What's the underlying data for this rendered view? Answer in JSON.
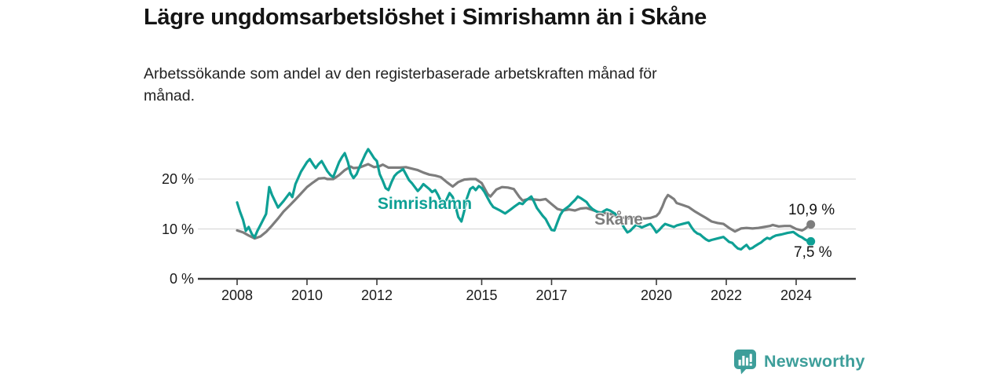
{
  "chart_data": {
    "type": "line",
    "title": "Lägre ungdomsarbetslöshet i Simrishamn än i Skåne",
    "subtitle": "Arbetssökande som andel av den registerbaserade arbetskraften månad för månad.",
    "unit": "%",
    "grid": "horizontal",
    "legend_position": "inline-labels-on-lines",
    "x_axis": {
      "range": [
        2006.9,
        2025.7
      ],
      "ticks": [
        2008,
        2010,
        2012,
        2015,
        2017,
        2020,
        2022,
        2024
      ]
    },
    "y_axis": {
      "range": [
        0,
        27
      ],
      "ticks": [
        {
          "value": 0,
          "label": "0 %"
        },
        {
          "value": 10,
          "label": "10 %"
        },
        {
          "value": 20,
          "label": "20 %"
        }
      ]
    },
    "series": [
      {
        "name": "Skåne",
        "color": "#7d7d7d",
        "end_label": "10,9 %",
        "end_value": 10.9,
        "points": [
          [
            2008.0,
            9.7
          ],
          [
            2008.17,
            9.3
          ],
          [
            2008.33,
            8.7
          ],
          [
            2008.5,
            8.1
          ],
          [
            2008.67,
            8.5
          ],
          [
            2008.83,
            9.4
          ],
          [
            2009.0,
            10.7
          ],
          [
            2009.17,
            12.1
          ],
          [
            2009.33,
            13.5
          ],
          [
            2009.5,
            14.7
          ],
          [
            2009.67,
            15.9
          ],
          [
            2009.83,
            17.1
          ],
          [
            2010.0,
            18.4
          ],
          [
            2010.17,
            19.3
          ],
          [
            2010.33,
            20.1
          ],
          [
            2010.5,
            20.2
          ],
          [
            2010.58,
            20.0
          ],
          [
            2010.75,
            20.0
          ],
          [
            2010.92,
            20.8
          ],
          [
            2011.08,
            21.8
          ],
          [
            2011.25,
            22.5
          ],
          [
            2011.33,
            22.2
          ],
          [
            2011.5,
            22.3
          ],
          [
            2011.75,
            23.0
          ],
          [
            2011.92,
            22.4
          ],
          [
            2012.08,
            22.6
          ],
          [
            2012.17,
            22.9
          ],
          [
            2012.33,
            22.3
          ],
          [
            2012.5,
            22.3
          ],
          [
            2012.67,
            22.3
          ],
          [
            2012.83,
            22.4
          ],
          [
            2013.0,
            22.1
          ],
          [
            2013.17,
            21.8
          ],
          [
            2013.33,
            21.3
          ],
          [
            2013.5,
            20.9
          ],
          [
            2013.67,
            20.7
          ],
          [
            2013.83,
            20.4
          ],
          [
            2014.0,
            19.4
          ],
          [
            2014.17,
            18.5
          ],
          [
            2014.33,
            19.4
          ],
          [
            2014.5,
            19.9
          ],
          [
            2014.67,
            20.0
          ],
          [
            2014.83,
            20.0
          ],
          [
            2015.0,
            19.2
          ],
          [
            2015.17,
            17.0
          ],
          [
            2015.25,
            16.5
          ],
          [
            2015.42,
            17.9
          ],
          [
            2015.58,
            18.4
          ],
          [
            2015.75,
            18.3
          ],
          [
            2015.92,
            18.0
          ],
          [
            2016.08,
            16.4
          ],
          [
            2016.17,
            15.7
          ],
          [
            2016.33,
            16.0
          ],
          [
            2016.5,
            15.9
          ],
          [
            2016.67,
            15.8
          ],
          [
            2016.83,
            16.0
          ],
          [
            2017.0,
            15.0
          ],
          [
            2017.17,
            14.0
          ],
          [
            2017.33,
            13.7
          ],
          [
            2017.5,
            13.9
          ],
          [
            2017.67,
            13.7
          ],
          [
            2017.83,
            14.1
          ],
          [
            2018.0,
            14.2
          ],
          [
            2018.17,
            13.8
          ],
          [
            2018.33,
            13.4
          ],
          [
            2018.5,
            13.2
          ],
          [
            2018.67,
            13.0
          ],
          [
            2018.83,
            12.6
          ],
          [
            2019.0,
            12.3
          ],
          [
            2019.17,
            12.1
          ],
          [
            2019.33,
            12.3
          ],
          [
            2019.5,
            12.2
          ],
          [
            2019.67,
            12.1
          ],
          [
            2019.83,
            12.2
          ],
          [
            2020.0,
            12.6
          ],
          [
            2020.08,
            13.2
          ],
          [
            2020.17,
            14.5
          ],
          [
            2020.25,
            15.9
          ],
          [
            2020.33,
            16.8
          ],
          [
            2020.42,
            16.4
          ],
          [
            2020.5,
            16.0
          ],
          [
            2020.58,
            15.2
          ],
          [
            2020.75,
            14.8
          ],
          [
            2020.92,
            14.4
          ],
          [
            2021.08,
            13.6
          ],
          [
            2021.25,
            12.9
          ],
          [
            2021.42,
            12.2
          ],
          [
            2021.58,
            11.5
          ],
          [
            2021.75,
            11.2
          ],
          [
            2021.92,
            11.0
          ],
          [
            2022.08,
            10.2
          ],
          [
            2022.25,
            9.5
          ],
          [
            2022.42,
            10.1
          ],
          [
            2022.58,
            10.2
          ],
          [
            2022.75,
            10.1
          ],
          [
            2022.92,
            10.2
          ],
          [
            2023.08,
            10.4
          ],
          [
            2023.25,
            10.6
          ],
          [
            2023.33,
            10.8
          ],
          [
            2023.5,
            10.5
          ],
          [
            2023.67,
            10.6
          ],
          [
            2023.83,
            10.6
          ],
          [
            2024.0,
            10.0
          ],
          [
            2024.17,
            9.7
          ],
          [
            2024.25,
            10.0
          ],
          [
            2024.33,
            10.5
          ],
          [
            2024.42,
            10.9
          ]
        ]
      },
      {
        "name": "Simrishamn",
        "color": "#0ea095",
        "end_label": "7,5 %",
        "end_value": 7.5,
        "points": [
          [
            2008.0,
            15.3
          ],
          [
            2008.08,
            13.5
          ],
          [
            2008.17,
            11.8
          ],
          [
            2008.25,
            9.6
          ],
          [
            2008.33,
            10.4
          ],
          [
            2008.42,
            9.0
          ],
          [
            2008.5,
            8.3
          ],
          [
            2008.58,
            9.6
          ],
          [
            2008.67,
            10.8
          ],
          [
            2008.83,
            13.0
          ],
          [
            2008.92,
            18.4
          ],
          [
            2009.0,
            16.8
          ],
          [
            2009.17,
            14.3
          ],
          [
            2009.33,
            15.6
          ],
          [
            2009.5,
            17.2
          ],
          [
            2009.58,
            16.4
          ],
          [
            2009.67,
            19.0
          ],
          [
            2009.83,
            21.5
          ],
          [
            2010.0,
            23.4
          ],
          [
            2010.08,
            24.0
          ],
          [
            2010.17,
            23.0
          ],
          [
            2010.25,
            22.2
          ],
          [
            2010.33,
            23.0
          ],
          [
            2010.42,
            23.6
          ],
          [
            2010.5,
            22.6
          ],
          [
            2010.58,
            21.6
          ],
          [
            2010.67,
            20.8
          ],
          [
            2010.75,
            20.4
          ],
          [
            2010.83,
            21.8
          ],
          [
            2010.92,
            23.4
          ],
          [
            2011.0,
            24.4
          ],
          [
            2011.08,
            25.2
          ],
          [
            2011.17,
            23.4
          ],
          [
            2011.25,
            21.2
          ],
          [
            2011.33,
            20.2
          ],
          [
            2011.42,
            21.0
          ],
          [
            2011.5,
            22.4
          ],
          [
            2011.58,
            23.6
          ],
          [
            2011.67,
            25.0
          ],
          [
            2011.75,
            26.0
          ],
          [
            2011.83,
            25.2
          ],
          [
            2011.92,
            24.2
          ],
          [
            2012.0,
            23.6
          ],
          [
            2012.08,
            21.0
          ],
          [
            2012.17,
            19.6
          ],
          [
            2012.25,
            18.2
          ],
          [
            2012.33,
            17.8
          ],
          [
            2012.42,
            19.4
          ],
          [
            2012.5,
            20.6
          ],
          [
            2012.58,
            21.2
          ],
          [
            2012.75,
            22.0
          ],
          [
            2012.83,
            21.0
          ],
          [
            2012.92,
            19.8
          ],
          [
            2013.0,
            19.2
          ],
          [
            2013.17,
            17.6
          ],
          [
            2013.25,
            18.2
          ],
          [
            2013.33,
            19.0
          ],
          [
            2013.5,
            18.0
          ],
          [
            2013.58,
            17.4
          ],
          [
            2013.67,
            17.8
          ],
          [
            2013.75,
            16.8
          ],
          [
            2013.83,
            15.6
          ],
          [
            2013.92,
            14.8
          ],
          [
            2014.0,
            16.0
          ],
          [
            2014.08,
            17.2
          ],
          [
            2014.17,
            16.4
          ],
          [
            2014.25,
            14.6
          ],
          [
            2014.33,
            12.4
          ],
          [
            2014.42,
            11.5
          ],
          [
            2014.5,
            13.6
          ],
          [
            2014.58,
            16.2
          ],
          [
            2014.67,
            18.0
          ],
          [
            2014.75,
            18.4
          ],
          [
            2014.83,
            17.8
          ],
          [
            2014.92,
            18.6
          ],
          [
            2015.0,
            18.2
          ],
          [
            2015.08,
            17.4
          ],
          [
            2015.17,
            16.2
          ],
          [
            2015.25,
            15.2
          ],
          [
            2015.33,
            14.4
          ],
          [
            2015.5,
            13.8
          ],
          [
            2015.67,
            13.1
          ],
          [
            2015.83,
            13.9
          ],
          [
            2015.92,
            14.4
          ],
          [
            2016.0,
            14.8
          ],
          [
            2016.08,
            15.2
          ],
          [
            2016.17,
            15.0
          ],
          [
            2016.25,
            15.6
          ],
          [
            2016.42,
            16.5
          ],
          [
            2016.5,
            15.4
          ],
          [
            2016.58,
            14.2
          ],
          [
            2016.75,
            12.6
          ],
          [
            2016.83,
            12.0
          ],
          [
            2016.92,
            10.8
          ],
          [
            2017.0,
            9.8
          ],
          [
            2017.08,
            9.7
          ],
          [
            2017.17,
            11.4
          ],
          [
            2017.25,
            12.8
          ],
          [
            2017.33,
            13.7
          ],
          [
            2017.5,
            14.6
          ],
          [
            2017.58,
            15.2
          ],
          [
            2017.67,
            15.8
          ],
          [
            2017.75,
            16.5
          ],
          [
            2017.83,
            16.2
          ],
          [
            2018.0,
            15.4
          ],
          [
            2018.08,
            14.6
          ],
          [
            2018.17,
            14.0
          ],
          [
            2018.33,
            13.3
          ],
          [
            2018.42,
            13.2
          ],
          [
            2018.5,
            13.6
          ],
          [
            2018.58,
            13.9
          ],
          [
            2018.67,
            13.7
          ],
          [
            2018.83,
            13.0
          ],
          [
            2018.92,
            12.2
          ],
          [
            2019.0,
            11.2
          ],
          [
            2019.08,
            10.2
          ],
          [
            2019.17,
            9.3
          ],
          [
            2019.25,
            9.6
          ],
          [
            2019.33,
            10.2
          ],
          [
            2019.42,
            10.8
          ],
          [
            2019.5,
            10.6
          ],
          [
            2019.58,
            10.3
          ],
          [
            2019.75,
            10.8
          ],
          [
            2019.83,
            11.0
          ],
          [
            2019.92,
            10.2
          ],
          [
            2020.0,
            9.3
          ],
          [
            2020.08,
            9.8
          ],
          [
            2020.17,
            10.5
          ],
          [
            2020.25,
            11.0
          ],
          [
            2020.33,
            10.8
          ],
          [
            2020.5,
            10.4
          ],
          [
            2020.58,
            10.7
          ],
          [
            2020.75,
            11.0
          ],
          [
            2020.92,
            11.3
          ],
          [
            2021.0,
            10.4
          ],
          [
            2021.08,
            9.6
          ],
          [
            2021.17,
            9.1
          ],
          [
            2021.25,
            8.9
          ],
          [
            2021.33,
            8.4
          ],
          [
            2021.42,
            7.9
          ],
          [
            2021.5,
            7.6
          ],
          [
            2021.58,
            7.8
          ],
          [
            2021.75,
            8.1
          ],
          [
            2021.92,
            8.4
          ],
          [
            2022.0,
            7.9
          ],
          [
            2022.08,
            7.4
          ],
          [
            2022.17,
            7.2
          ],
          [
            2022.25,
            6.6
          ],
          [
            2022.33,
            6.1
          ],
          [
            2022.42,
            5.9
          ],
          [
            2022.5,
            6.4
          ],
          [
            2022.58,
            6.8
          ],
          [
            2022.67,
            6.0
          ],
          [
            2022.75,
            6.2
          ],
          [
            2022.83,
            6.6
          ],
          [
            2022.92,
            7.0
          ],
          [
            2023.0,
            7.3
          ],
          [
            2023.08,
            7.8
          ],
          [
            2023.17,
            8.2
          ],
          [
            2023.25,
            8.0
          ],
          [
            2023.33,
            8.4
          ],
          [
            2023.42,
            8.7
          ],
          [
            2023.58,
            8.9
          ],
          [
            2023.75,
            9.2
          ],
          [
            2023.92,
            9.4
          ],
          [
            2024.0,
            9.0
          ],
          [
            2024.08,
            8.6
          ],
          [
            2024.17,
            8.3
          ],
          [
            2024.25,
            7.9
          ],
          [
            2024.33,
            7.6
          ],
          [
            2024.42,
            7.5
          ]
        ]
      }
    ]
  },
  "footer": {
    "brand": "Newsworthy",
    "brand_color": "#3d9e9a",
    "logo_icon": "bar-chart-speech-bubble-icon"
  }
}
